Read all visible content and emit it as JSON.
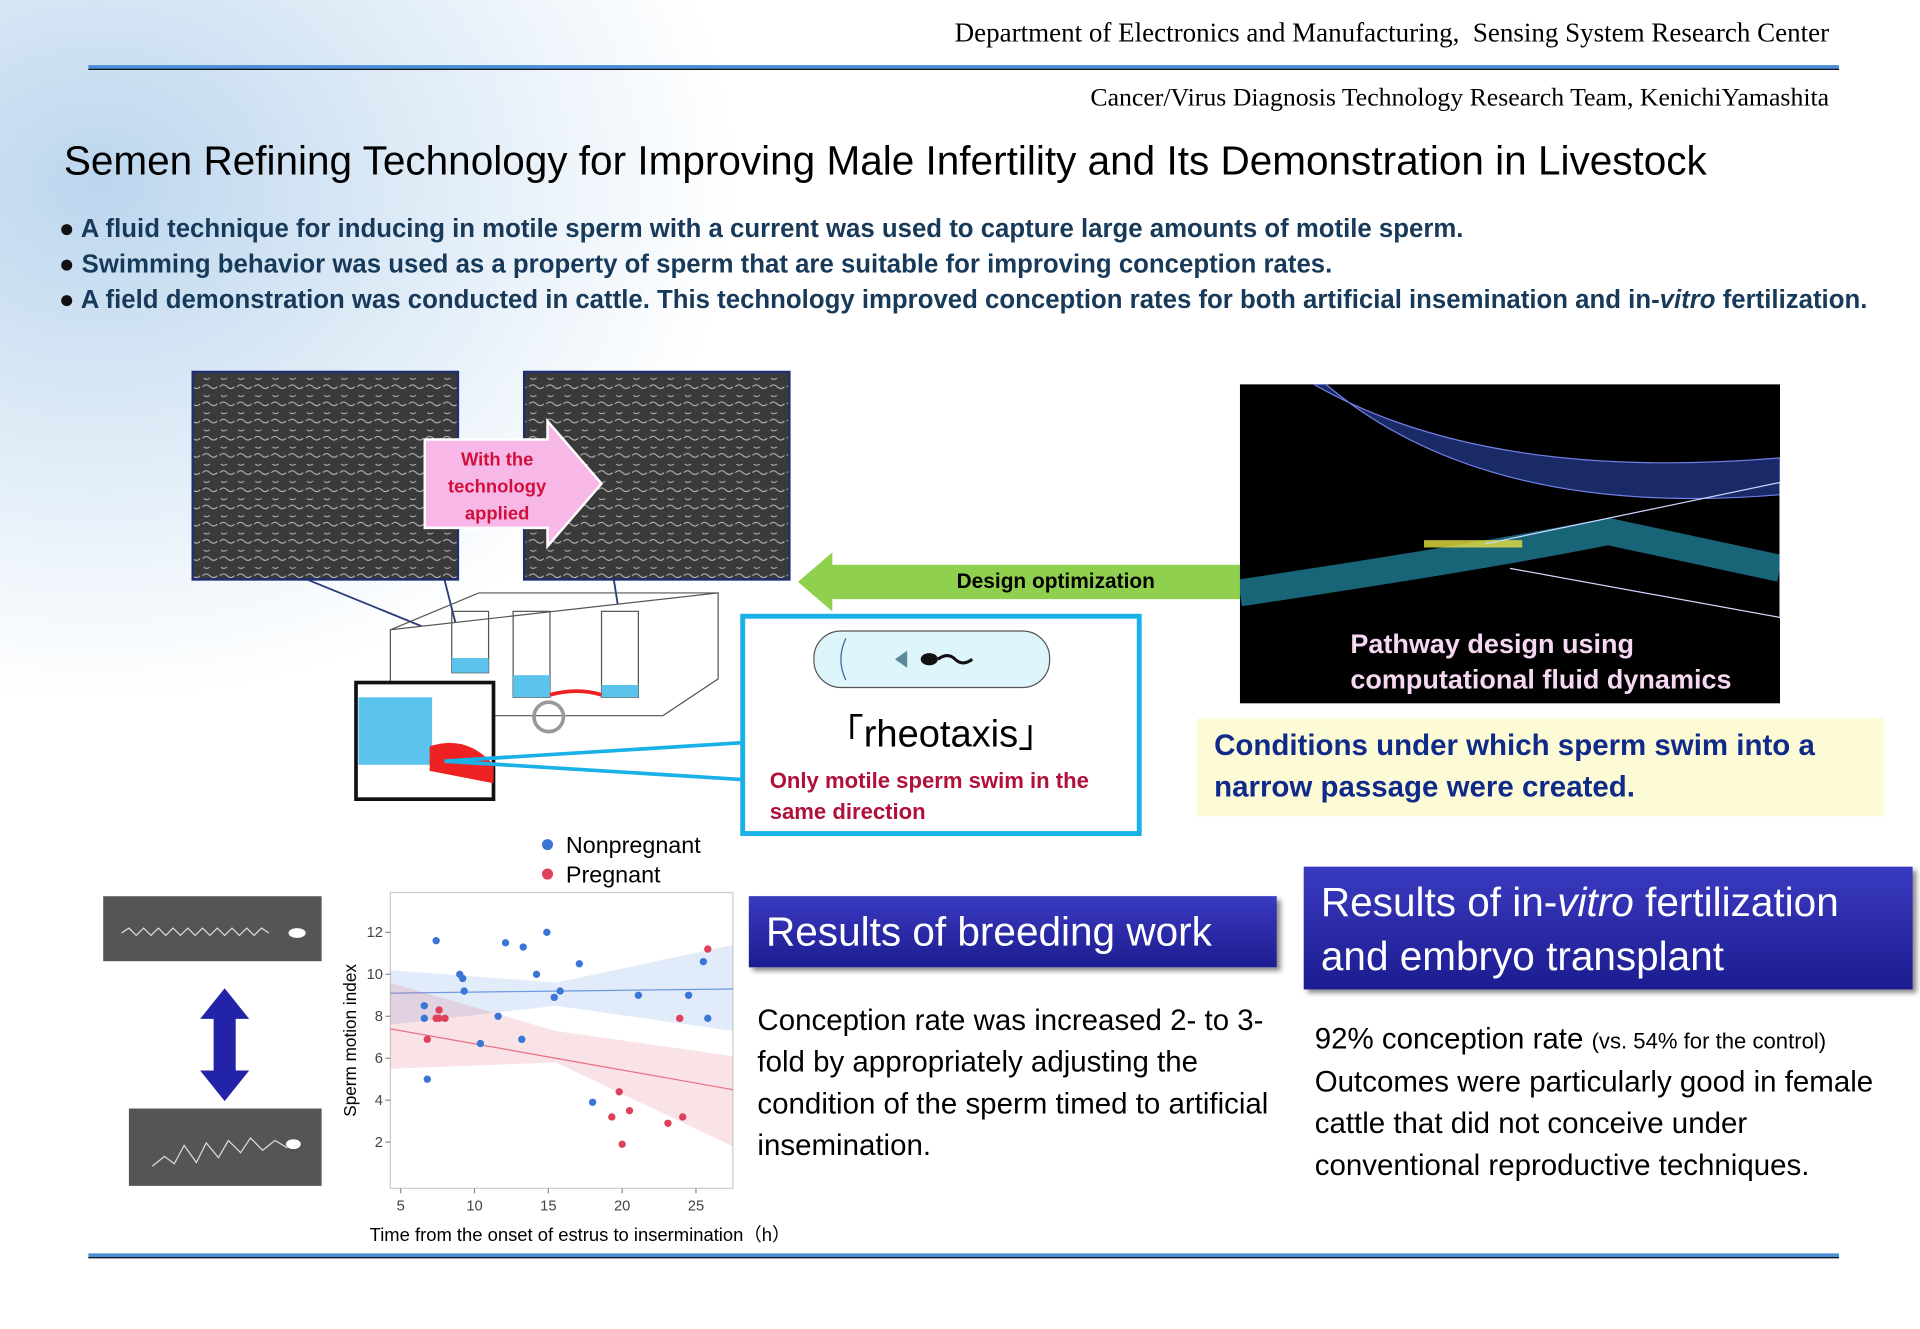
{
  "header": {
    "department": "Department of Electronics and Manufacturing,  Sensing System Research Center",
    "team": "Cancer/Virus Diagnosis Technology Research Team, KenichiYamashita"
  },
  "title": "Semen Refining Technology for Improving Male Infertility and Its Demonstration in Livestock",
  "bullets": [
    [
      "A fluid technique for inducing in motile sperm with a current was used to capture large amounts of motile sperm."
    ],
    [
      "Swimming behavior was used as a property of sperm that are suitable for improving conception rates."
    ],
    [
      "A field demonstration was conducted in cattle. This technology improved conception rates for both artificial insemination and in-",
      "vitro",
      " fertilization."
    ]
  ],
  "diagram": {
    "arrow_label": "With the technology applied",
    "design_label": "Design optimization",
    "rheotaxis": "「rheotaxis」",
    "rheotaxis_note": "Only motile sperm swim in the same direction",
    "cfd_caption": "Pathway design using computational fluid dynamics",
    "conditions": "Conditions under which sperm swim into a narrow passage were created."
  },
  "chart_data": {
    "type": "scatter",
    "xlabel": "Time from the onset of estrus to insermination（h）",
    "ylabel": "Sperm motion index",
    "xlim": [
      4.3,
      27.5
    ],
    "ylim": [
      -0.2,
      13.9
    ],
    "xticks": [
      5,
      10,
      15,
      20,
      25
    ],
    "yticks": [
      2,
      4,
      6,
      8,
      10,
      12
    ],
    "series": [
      {
        "name": "Nonpregnant",
        "color": "#3a76d6",
        "x": [
          7.4,
          9.0,
          9.2,
          9.3,
          12.1,
          13.3,
          14.9,
          14.2,
          17.1,
          15.4,
          15.8,
          6.6,
          6.6,
          6.8,
          10.4,
          11.6,
          13.2,
          18.0,
          21.1,
          24.5,
          25.5,
          25.8
        ],
        "values": [
          11.6,
          10.0,
          9.8,
          9.2,
          11.5,
          11.3,
          12.0,
          10.0,
          10.5,
          8.9,
          9.2,
          8.5,
          7.9,
          5.0,
          6.7,
          8.0,
          6.9,
          3.9,
          9.0,
          9.0,
          10.6,
          7.9
        ],
        "fit": {
          "x": [
            4.3,
            15.5,
            27.5
          ],
          "values": [
            9.1,
            9.2,
            9.3
          ],
          "lower": [
            7.6,
            8.5,
            7.3
          ],
          "upper": [
            10.2,
            9.6,
            11.4
          ]
        }
      },
      {
        "name": "Pregnant",
        "color": "#e0405a",
        "x": [
          6.8,
          7.4,
          7.6,
          7.6,
          8.0,
          19.3,
          19.8,
          20.5,
          20.0,
          23.1,
          24.1,
          23.9,
          25.8
        ],
        "values": [
          6.9,
          7.9,
          8.3,
          7.9,
          7.9,
          3.2,
          4.4,
          3.5,
          1.9,
          2.9,
          3.2,
          7.9,
          11.2
        ],
        "fit": {
          "x": [
            4.3,
            15.5,
            27.5
          ],
          "values": [
            7.4,
            6.0,
            4.5
          ],
          "lower": [
            5.5,
            5.8,
            1.8
          ],
          "upper": [
            9.6,
            7.3,
            6.1
          ]
        }
      }
    ]
  },
  "results": {
    "breeding": {
      "heading": "Results of breeding work",
      "text": "Conception rate was increased 2- to 3-fold by appropriately adjusting the condition of the sperm timed to artificial insemination."
    },
    "ivf": {
      "heading_parts": [
        "Results of in-",
        "vitro",
        " fertilization and embryo transplant"
      ],
      "lead": "92% conception rate",
      "note": "(vs. 54% for the control)",
      "text": "Outcomes were particularly good in female cattle that did not conceive under conventional reproductive techniques."
    }
  }
}
